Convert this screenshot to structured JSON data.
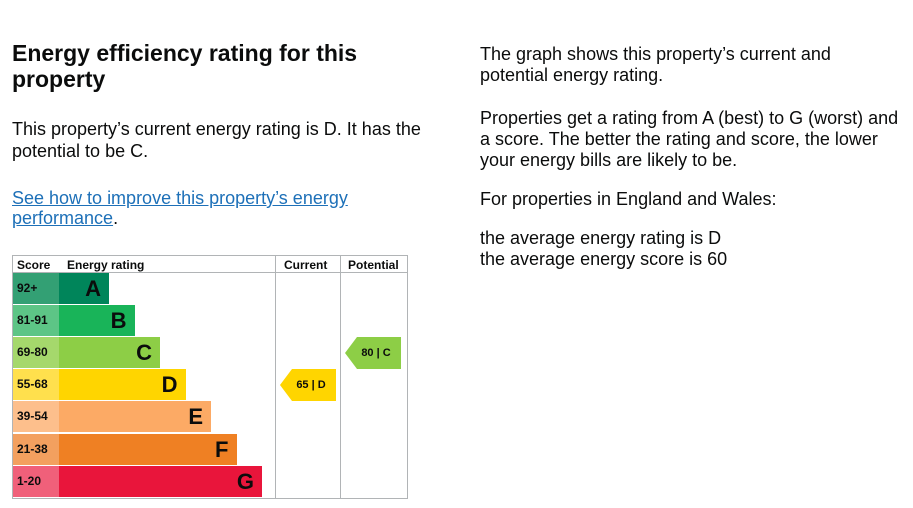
{
  "heading": "Energy efficiency rating for this property",
  "summary": "This property’s current energy rating is D. It has the potential to be C.",
  "improve_link": "See how to improve this property’s energy performance",
  "improve_link_suffix": ".",
  "side": {
    "p1": "The graph shows this property’s current and potential energy rating.",
    "p2": "Properties get a rating from A (best) to G (worst) and a score. The better the rating and score, the lower your energy bills are likely to be.",
    "p3": "For properties in England and Wales:",
    "p4_line1": "the average energy rating is D",
    "p4_line2": "the average energy score is 60"
  },
  "chart_data": {
    "type": "table",
    "headers": {
      "score": "Score",
      "rating": "Energy rating",
      "current": "Current",
      "potential": "Potential"
    },
    "bands": [
      {
        "score": "92+",
        "letter": "A",
        "color": "#00855a",
        "score_bg": "#33a074"
      },
      {
        "score": "81-91",
        "letter": "B",
        "color": "#19b459",
        "score_bg": "#5dc586"
      },
      {
        "score": "69-80",
        "letter": "C",
        "color": "#8dce46",
        "score_bg": "#a5d86c"
      },
      {
        "score": "55-68",
        "letter": "D",
        "color": "#ffd500",
        "score_bg": "#ffe04d"
      },
      {
        "score": "39-54",
        "letter": "E",
        "color": "#fcaa65",
        "score_bg": "#fdbf8c"
      },
      {
        "score": "21-38",
        "letter": "F",
        "color": "#ef8023",
        "score_bg": "#f3a05f"
      },
      {
        "score": "1-20",
        "letter": "G",
        "color": "#e9153b",
        "score_bg": "#f0607a"
      }
    ],
    "current": {
      "score": 65,
      "letter": "D",
      "label": "65 | D",
      "color": "#ffd500"
    },
    "potential": {
      "score": 80,
      "letter": "C",
      "label": "80 | C",
      "color": "#8dce46"
    }
  }
}
